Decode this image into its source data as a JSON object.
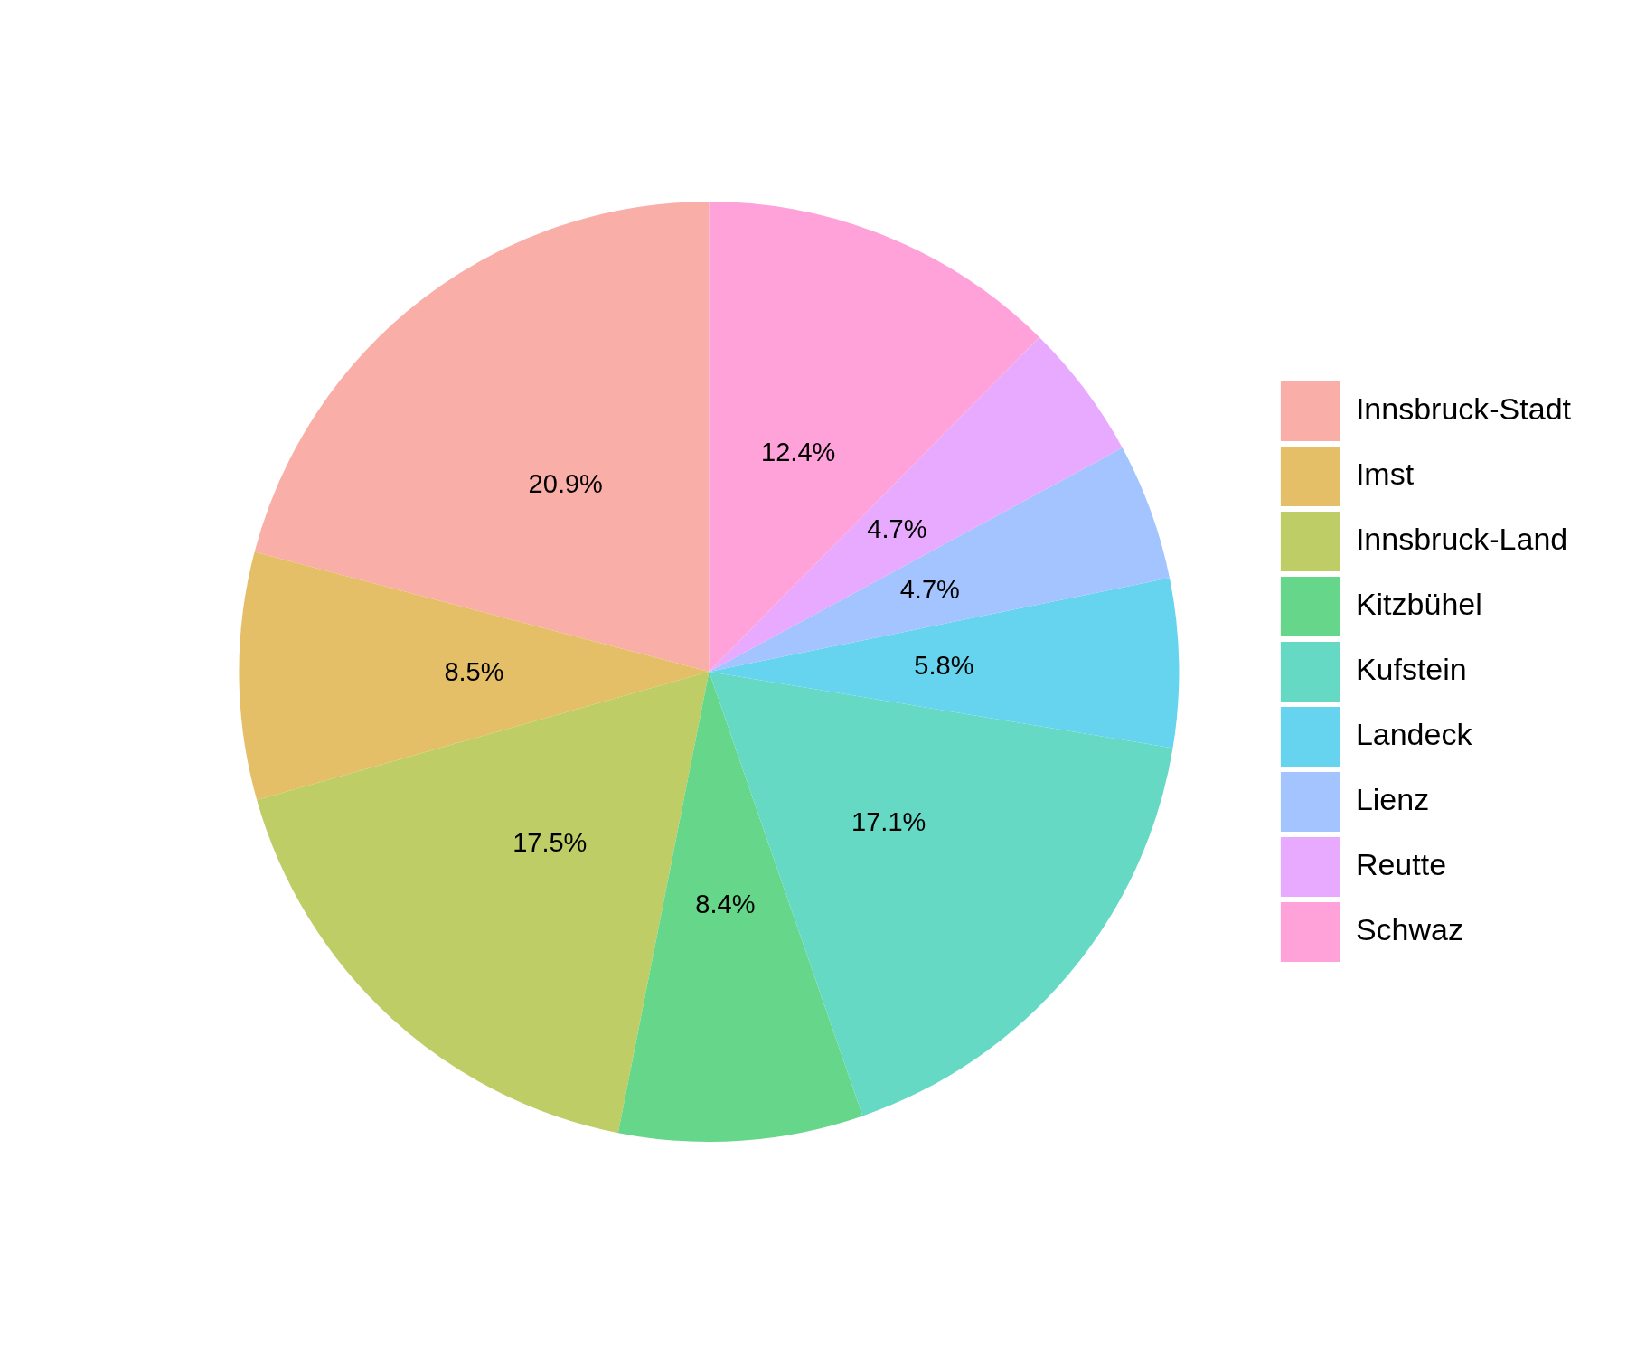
{
  "chart_data": {
    "type": "pie",
    "categories": [
      "Innsbruck-Stadt",
      "Imst",
      "Innsbruck-Land",
      "Kitzbühel",
      "Kufstein",
      "Landeck",
      "Lienz",
      "Reutte",
      "Schwaz"
    ],
    "values": [
      20.9,
      8.5,
      17.5,
      8.4,
      17.1,
      5.8,
      4.7,
      4.7,
      12.4
    ],
    "colors": [
      "#f9aea8",
      "#e5bf67",
      "#bfcd67",
      "#66d68a",
      "#66d9c5",
      "#66d4ee",
      "#a3c4ff",
      "#e8aaff",
      "#ffa2d9"
    ],
    "value_labels": [
      "20.9%",
      "8.5%",
      "17.5%",
      "8.4%",
      "17.1%",
      "5.8%",
      "4.7%",
      "4.7%",
      "12.4%"
    ],
    "legend": "right"
  }
}
